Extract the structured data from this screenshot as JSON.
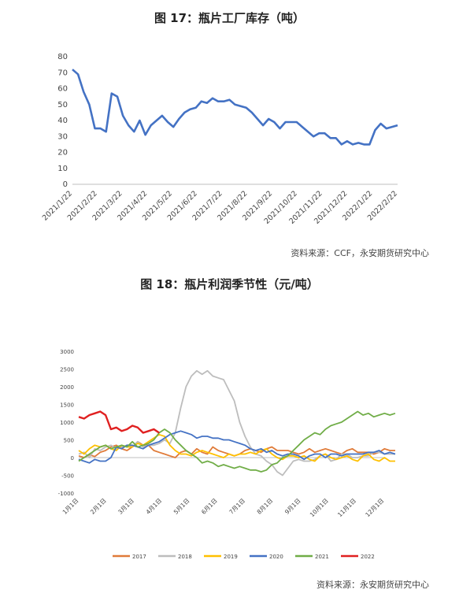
{
  "charts": [
    {
      "title": "图 17：瓶片工厂库存（吨）",
      "source": "资料来源：CCF，永安期货研究中心"
    },
    {
      "title": "图 18：瓶片利润季节性（元/吨）",
      "source": "资料来源：永安期货研究中心"
    }
  ],
  "chart_data": [
    {
      "type": "line",
      "title": "图 17：瓶片工厂库存（吨）",
      "ylim": [
        0,
        80
      ],
      "yticks": [
        0,
        10,
        20,
        30,
        40,
        50,
        60,
        70,
        80
      ],
      "xticks": [
        "2021/1/22",
        "2021/2/22",
        "2021/3/22",
        "2021/4/22",
        "2021/5/22",
        "2021/6/22",
        "2021/7/22",
        "2021/8/22",
        "2021/9/22",
        "2021/10/22",
        "2021/11/22",
        "2021/12/22",
        "2022/1/22",
        "2022/2/22"
      ],
      "color": "#4472C4",
      "series": [
        {
          "values": [
            72,
            69,
            58,
            50,
            35,
            35,
            33,
            57,
            55,
            43,
            37,
            33,
            40,
            31,
            37,
            40,
            43,
            39,
            36,
            41,
            45,
            47,
            48,
            52,
            51,
            54,
            52,
            52,
            53,
            50,
            49,
            48,
            45,
            41,
            37,
            41,
            39,
            35,
            39,
            39,
            39,
            36,
            33,
            30,
            32,
            32,
            29,
            29,
            25,
            27,
            25,
            26,
            25,
            25,
            34,
            38,
            35,
            36,
            37
          ]
        }
      ]
    },
    {
      "type": "line",
      "title": "图 18：瓶片利润季节性（元/吨）",
      "ylim": [
        -1000,
        3000
      ],
      "yticks": [
        -1000,
        -500,
        0,
        500,
        1000,
        1500,
        2000,
        2500,
        3000
      ],
      "xticks": [
        "1月1日",
        "2月1日",
        "3月1日",
        "4月1日",
        "5月1日",
        "6月1日",
        "7月1日",
        "8月1日",
        "9月1日",
        "10月1日",
        "11月1日",
        "12月1日"
      ],
      "legend_position": "bottom",
      "series": [
        {
          "name": "2017",
          "color": "#E07B39",
          "values": [
            50,
            0,
            80,
            30,
            150,
            200,
            300,
            350,
            250,
            200,
            300,
            450,
            350,
            350,
            200,
            150,
            100,
            50,
            0,
            150,
            200,
            100,
            250,
            150,
            100,
            300,
            200,
            150,
            100,
            50,
            100,
            200,
            250,
            200,
            150,
            250,
            300,
            200,
            200,
            200,
            150,
            100,
            150,
            250,
            150,
            200,
            250,
            200,
            150,
            100,
            200,
            250,
            150,
            150,
            150,
            100,
            150,
            250,
            200,
            200
          ]
        },
        {
          "name": "2018",
          "color": "#BDBDBD",
          "values": [
            100,
            150,
            0,
            250,
            200,
            300,
            350,
            250,
            300,
            350,
            300,
            450,
            300,
            350,
            350,
            400,
            500,
            400,
            700,
            1400,
            2000,
            2300,
            2450,
            2350,
            2450,
            2300,
            2250,
            2200,
            1900,
            1600,
            1000,
            600,
            300,
            100,
            50,
            -100,
            -200,
            -400,
            -500,
            -300,
            -100,
            -50,
            -100,
            -100,
            -50,
            50,
            100,
            -100,
            -50,
            100,
            100,
            0,
            0,
            50,
            50,
            150,
            150,
            100,
            100,
            100
          ]
        },
        {
          "name": "2019",
          "color": "#FFC000",
          "values": [
            200,
            100,
            250,
            350,
            300,
            350,
            250,
            200,
            350,
            300,
            300,
            400,
            350,
            450,
            550,
            650,
            600,
            350,
            200,
            100,
            100,
            50,
            150,
            200,
            150,
            100,
            50,
            0,
            100,
            50,
            100,
            100,
            150,
            100,
            200,
            250,
            100,
            0,
            -50,
            50,
            50,
            0,
            50,
            -50,
            -100,
            50,
            100,
            0,
            -50,
            0,
            50,
            -50,
            -100,
            50,
            100,
            -50,
            -100,
            0,
            -100,
            -100
          ]
        },
        {
          "name": "2020",
          "color": "#4472C4",
          "values": [
            -50,
            -100,
            -150,
            -50,
            -100,
            -100,
            0,
            300,
            250,
            350,
            350,
            300,
            250,
            350,
            400,
            450,
            550,
            650,
            700,
            750,
            700,
            650,
            550,
            600,
            600,
            550,
            550,
            500,
            500,
            450,
            400,
            350,
            250,
            200,
            250,
            150,
            200,
            100,
            50,
            100,
            100,
            50,
            -50,
            50,
            100,
            100,
            0,
            100,
            100,
            50,
            100,
            100,
            100,
            100,
            150,
            150,
            200,
            100,
            150,
            100
          ]
        },
        {
          "name": "2021",
          "color": "#70AD47",
          "values": [
            -100,
            0,
            100,
            200,
            300,
            350,
            250,
            300,
            350,
            300,
            450,
            300,
            350,
            400,
            500,
            700,
            800,
            700,
            500,
            350,
            200,
            100,
            0,
            -150,
            -100,
            -150,
            -250,
            -200,
            -250,
            -300,
            -250,
            -300,
            -350,
            -350,
            -400,
            -350,
            -200,
            -150,
            0,
            50,
            200,
            350,
            500,
            600,
            700,
            650,
            800,
            900,
            950,
            1000,
            1100,
            1200,
            1300,
            1200,
            1250,
            1150,
            1200,
            1250,
            1200,
            1250
          ]
        },
        {
          "name": "2022",
          "color": "#E02020",
          "values": [
            1150,
            1100,
            1200,
            1250,
            1300,
            1200,
            800,
            850,
            750,
            800,
            900,
            850,
            700,
            750,
            800,
            700
          ]
        }
      ]
    }
  ]
}
